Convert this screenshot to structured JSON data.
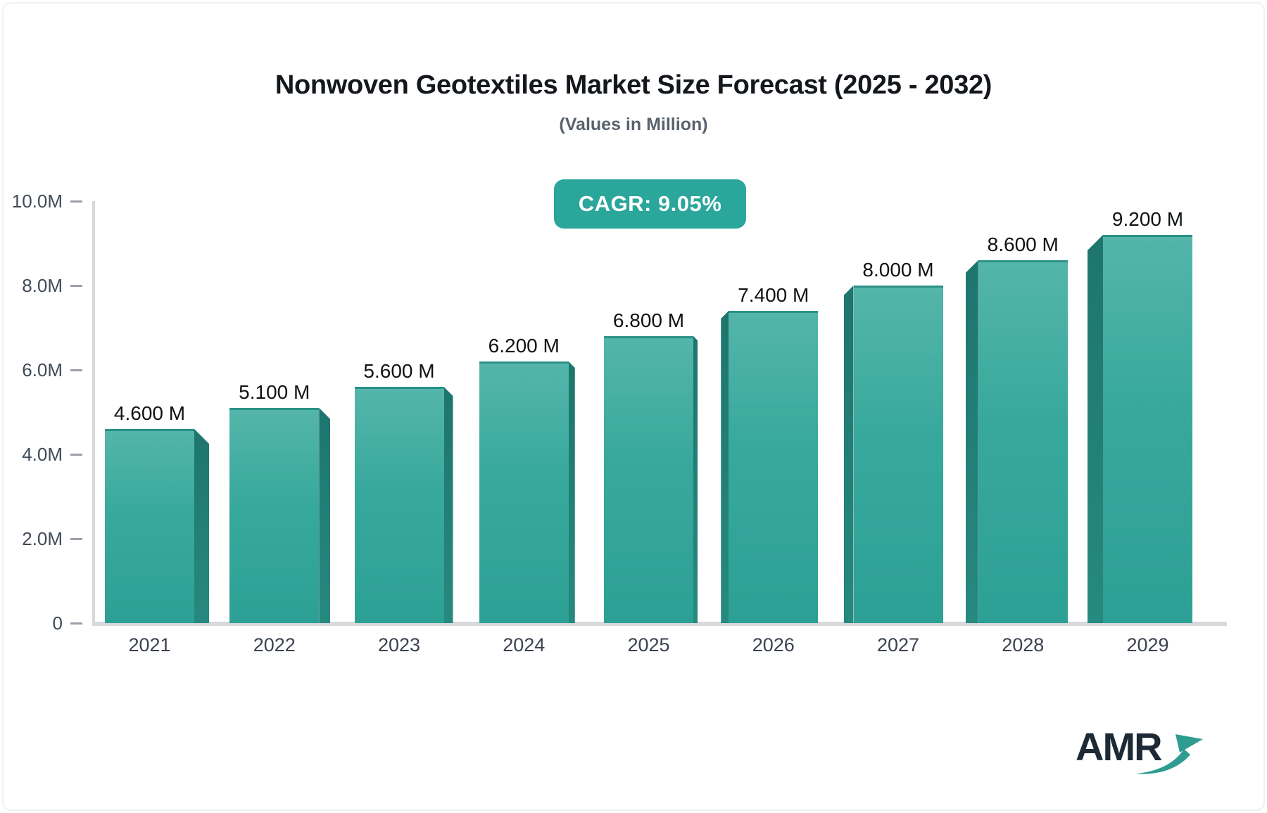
{
  "header": {
    "title": "Nonwoven Geotextiles Market Size Forecast (2025 - 2032)",
    "subtitle": "(Values in Million)",
    "cagr_badge": "CAGR: 9.05%"
  },
  "chart_data": {
    "type": "bar",
    "title": "Nonwoven Geotextiles Market Size Forecast (2025 - 2032)",
    "subtitle": "(Values in Million)",
    "cagr": "9.05%",
    "categories": [
      "2021",
      "2022",
      "2023",
      "2024",
      "2025",
      "2026",
      "2027",
      "2028",
      "2029"
    ],
    "values": [
      4.6,
      5.1,
      5.6,
      6.2,
      6.8,
      7.4,
      8.0,
      8.6,
      9.2
    ],
    "value_labels": [
      "4.600 M",
      "5.100 M",
      "5.600 M",
      "6.200 M",
      "6.800 M",
      "7.400 M",
      "8.000 M",
      "8.600 M",
      "9.200 M"
    ],
    "unit": "Million",
    "xlabel": "",
    "ylabel": "",
    "y_ticks": [
      "10.0M",
      "8.0M",
      "6.0M",
      "4.0M",
      "2.0M",
      "0"
    ],
    "ylim": [
      0,
      10
    ],
    "grid": "off",
    "legend": "none",
    "colors": {
      "bar_face_top": "#54b5aa",
      "bar_face_bottom": "#2da095",
      "bar_side": "#1f7d75",
      "badge_bg": "#2aa69b",
      "axis_line": "#d8d9dd",
      "tick": "#9aa1ab",
      "value_label": "#0f1215",
      "axis_label": "#414a58",
      "subtitle_gray": "#59626e",
      "logo_text": "#1d2a35",
      "logo_arrow": "#2f9c92"
    }
  },
  "branding": {
    "logo_text": "AMR",
    "arrow_icon": "growth-arrow-icon"
  }
}
